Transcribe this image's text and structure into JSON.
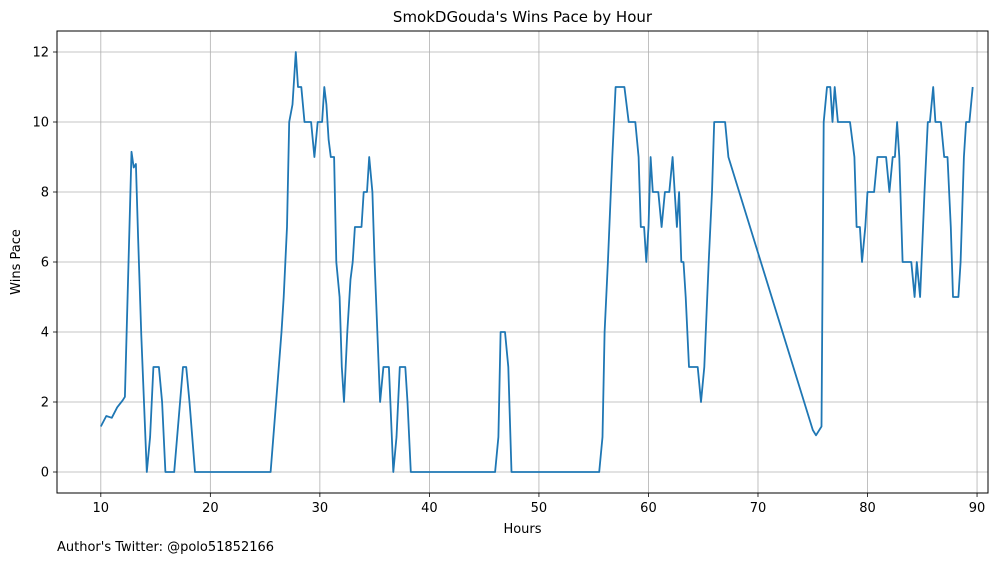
{
  "footer": {
    "text": "Author's Twitter: @polo51852166"
  },
  "chart_data": {
    "type": "line",
    "title": "SmokDGouda's Wins Pace by Hour",
    "xlabel": "Hours",
    "ylabel": "Wins Pace",
    "xlim": [
      6,
      91
    ],
    "ylim": [
      -0.6,
      12.6
    ],
    "xticks": [
      10,
      20,
      30,
      40,
      50,
      60,
      70,
      80,
      90
    ],
    "yticks": [
      0,
      2,
      4,
      6,
      8,
      10,
      12
    ],
    "grid": true,
    "line_color": "#1f77b4",
    "series": [
      {
        "points": [
          [
            10.0,
            1.3
          ],
          [
            10.5,
            1.6
          ],
          [
            11.0,
            1.55
          ],
          [
            11.5,
            1.85
          ],
          [
            12.0,
            2.05
          ],
          [
            12.2,
            2.15
          ],
          [
            12.8,
            9.15
          ],
          [
            13.0,
            8.7
          ],
          [
            13.2,
            8.8
          ],
          [
            13.4,
            6.7
          ],
          [
            13.7,
            3.9
          ],
          [
            14.2,
            0.0
          ],
          [
            14.5,
            1.0
          ],
          [
            14.8,
            3.0
          ],
          [
            15.3,
            3.0
          ],
          [
            15.6,
            2.0
          ],
          [
            15.9,
            0.0
          ],
          [
            16.3,
            0.0
          ],
          [
            16.7,
            0.0
          ],
          [
            17.1,
            1.5
          ],
          [
            17.5,
            3.0
          ],
          [
            17.8,
            3.0
          ],
          [
            18.1,
            2.0
          ],
          [
            18.6,
            0.0
          ],
          [
            20.0,
            0.0
          ],
          [
            25.5,
            0.0
          ],
          [
            26.0,
            2.0
          ],
          [
            26.5,
            4.0
          ],
          [
            26.7,
            5.0
          ],
          [
            27.0,
            7.0
          ],
          [
            27.2,
            10.0
          ],
          [
            27.5,
            10.5
          ],
          [
            27.8,
            12.0
          ],
          [
            28.0,
            11.0
          ],
          [
            28.3,
            11.0
          ],
          [
            28.6,
            10.0
          ],
          [
            29.2,
            10.0
          ],
          [
            29.5,
            9.0
          ],
          [
            29.8,
            10.0
          ],
          [
            30.2,
            10.0
          ],
          [
            30.4,
            11.0
          ],
          [
            30.6,
            10.5
          ],
          [
            30.8,
            9.5
          ],
          [
            31.0,
            9.0
          ],
          [
            31.3,
            9.0
          ],
          [
            31.5,
            6.0
          ],
          [
            31.8,
            5.0
          ],
          [
            32.0,
            3.0
          ],
          [
            32.2,
            2.0
          ],
          [
            32.5,
            4.0
          ],
          [
            32.8,
            5.5
          ],
          [
            33.0,
            6.0
          ],
          [
            33.2,
            7.0
          ],
          [
            33.8,
            7.0
          ],
          [
            34.0,
            8.0
          ],
          [
            34.3,
            8.0
          ],
          [
            34.5,
            9.0
          ],
          [
            34.8,
            8.0
          ],
          [
            35.0,
            6.0
          ],
          [
            35.5,
            2.0
          ],
          [
            35.8,
            3.0
          ],
          [
            36.3,
            3.0
          ],
          [
            36.7,
            0.0
          ],
          [
            37.0,
            1.0
          ],
          [
            37.3,
            3.0
          ],
          [
            37.8,
            3.0
          ],
          [
            38.0,
            2.0
          ],
          [
            38.3,
            0.0
          ],
          [
            46.0,
            0.0
          ],
          [
            46.3,
            1.0
          ],
          [
            46.5,
            4.0
          ],
          [
            46.9,
            4.0
          ],
          [
            47.2,
            3.0
          ],
          [
            47.5,
            0.0
          ],
          [
            55.5,
            0.0
          ],
          [
            55.8,
            1.0
          ],
          [
            56.0,
            4.0
          ],
          [
            56.3,
            6.0
          ],
          [
            56.7,
            9.0
          ],
          [
            57.0,
            11.0
          ],
          [
            57.8,
            11.0
          ],
          [
            58.2,
            10.0
          ],
          [
            58.8,
            10.0
          ],
          [
            59.1,
            9.0
          ],
          [
            59.3,
            7.0
          ],
          [
            59.6,
            7.0
          ],
          [
            59.8,
            6.0
          ],
          [
            60.0,
            7.0
          ],
          [
            60.2,
            9.0
          ],
          [
            60.4,
            8.0
          ],
          [
            60.9,
            8.0
          ],
          [
            61.2,
            7.0
          ],
          [
            61.5,
            8.0
          ],
          [
            61.9,
            8.0
          ],
          [
            62.2,
            9.0
          ],
          [
            62.4,
            8.0
          ],
          [
            62.6,
            7.0
          ],
          [
            62.8,
            8.0
          ],
          [
            63.0,
            6.0
          ],
          [
            63.2,
            6.0
          ],
          [
            63.4,
            5.0
          ],
          [
            63.7,
            3.0
          ],
          [
            64.5,
            3.0
          ],
          [
            64.8,
            2.0
          ],
          [
            65.1,
            3.0
          ],
          [
            65.5,
            6.0
          ],
          [
            65.8,
            8.0
          ],
          [
            66.0,
            10.0
          ],
          [
            67.0,
            10.0
          ],
          [
            67.3,
            9.0
          ],
          [
            75.0,
            1.2
          ],
          [
            75.3,
            1.05
          ],
          [
            75.8,
            1.3
          ],
          [
            76.0,
            10.0
          ],
          [
            76.3,
            11.0
          ],
          [
            76.6,
            11.0
          ],
          [
            76.8,
            10.0
          ],
          [
            77.0,
            11.0
          ],
          [
            77.3,
            10.0
          ],
          [
            78.4,
            10.0
          ],
          [
            78.8,
            9.0
          ],
          [
            79.0,
            7.0
          ],
          [
            79.3,
            7.0
          ],
          [
            79.5,
            6.0
          ],
          [
            79.8,
            7.0
          ],
          [
            80.0,
            8.0
          ],
          [
            80.6,
            8.0
          ],
          [
            80.9,
            9.0
          ],
          [
            81.7,
            9.0
          ],
          [
            82.0,
            8.0
          ],
          [
            82.3,
            9.0
          ],
          [
            82.5,
            9.0
          ],
          [
            82.7,
            10.0
          ],
          [
            82.9,
            9.0
          ],
          [
            83.2,
            6.0
          ],
          [
            84.0,
            6.0
          ],
          [
            84.3,
            5.0
          ],
          [
            84.5,
            6.0
          ],
          [
            84.8,
            5.0
          ],
          [
            85.2,
            8.0
          ],
          [
            85.5,
            10.0
          ],
          [
            85.7,
            10.0
          ],
          [
            86.0,
            11.0
          ],
          [
            86.2,
            10.0
          ],
          [
            86.7,
            10.0
          ],
          [
            87.0,
            9.0
          ],
          [
            87.3,
            9.0
          ],
          [
            87.6,
            7.0
          ],
          [
            87.8,
            5.0
          ],
          [
            88.3,
            5.0
          ],
          [
            88.5,
            6.0
          ],
          [
            88.8,
            9.0
          ],
          [
            89.0,
            10.0
          ],
          [
            89.3,
            10.0
          ],
          [
            89.6,
            11.0
          ]
        ]
      }
    ]
  }
}
